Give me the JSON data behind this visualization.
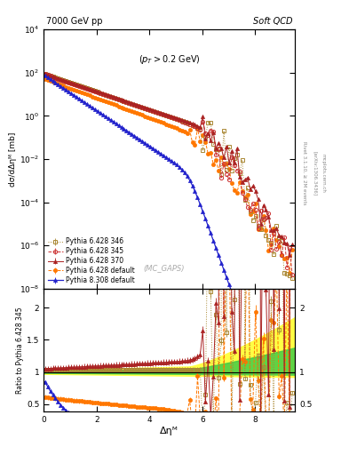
{
  "title_left": "7000 GeV pp",
  "title_right": "Soft QCD",
  "annotation": "(p_{T} > 0.2 GeV)",
  "watermark": "(MC_GAPS)",
  "ylabel_main": "dσ/dΔηᴹ [mb]",
  "ylabel_ratio": "Ratio to Pythia 6.428 345",
  "xlabel": "Δηᴹ",
  "rivet_label": "Rivet 3.1.10, ≥ 2M events",
  "arxiv_label": "[arXiv:1306.3436]",
  "mcplots_label": "mcplots.cern.ch",
  "ylim_main": [
    1e-08,
    10000.0
  ],
  "ylim_ratio": [
    0.38,
    2.3
  ],
  "xlim": [
    0,
    9.5
  ],
  "legend_entries": [
    "Pythia 6.428 345",
    "Pythia 6.428 346",
    "Pythia 6.428 370",
    "Pythia 6.428 default",
    "Pythia 8.308 default"
  ],
  "c345": "#cc3333",
  "c346": "#aa8833",
  "c370": "#aa2222",
  "cdef6": "#ff7700",
  "cdef8": "#2222cc",
  "background_color": "#ffffff"
}
